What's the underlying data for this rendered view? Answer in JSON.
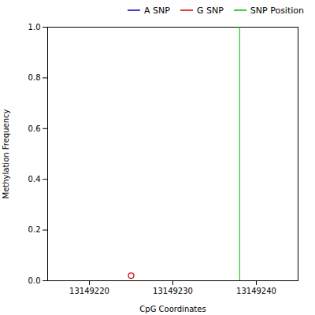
{
  "chart_data": {
    "type": "scatter",
    "xlabel": "CpG Coordinates",
    "ylabel": "Methylation Frequency",
    "xlim": [
      13149215,
      13149245
    ],
    "ylim": [
      0.0,
      1.0
    ],
    "xticks": [
      13149220,
      13149230,
      13149240
    ],
    "yticks": [
      {
        "value": 0.0,
        "label": "0.0"
      },
      0.2,
      0.4,
      0.6,
      0.8,
      {
        "value": 1.0,
        "label": "1.0"
      }
    ],
    "grid": false,
    "legend": "upper right",
    "series": [
      {
        "name": "A SNP",
        "type": "line",
        "color": "#0000cc",
        "x": [],
        "values": []
      },
      {
        "name": "G SNP",
        "type": "scatter",
        "color": "#cc0000",
        "marker": "circle",
        "x": [
          13149225
        ],
        "values": [
          0.02
        ]
      },
      {
        "name": "SNP Position",
        "type": "vline",
        "color": "#00bb00",
        "x": [
          13149238
        ]
      }
    ]
  }
}
